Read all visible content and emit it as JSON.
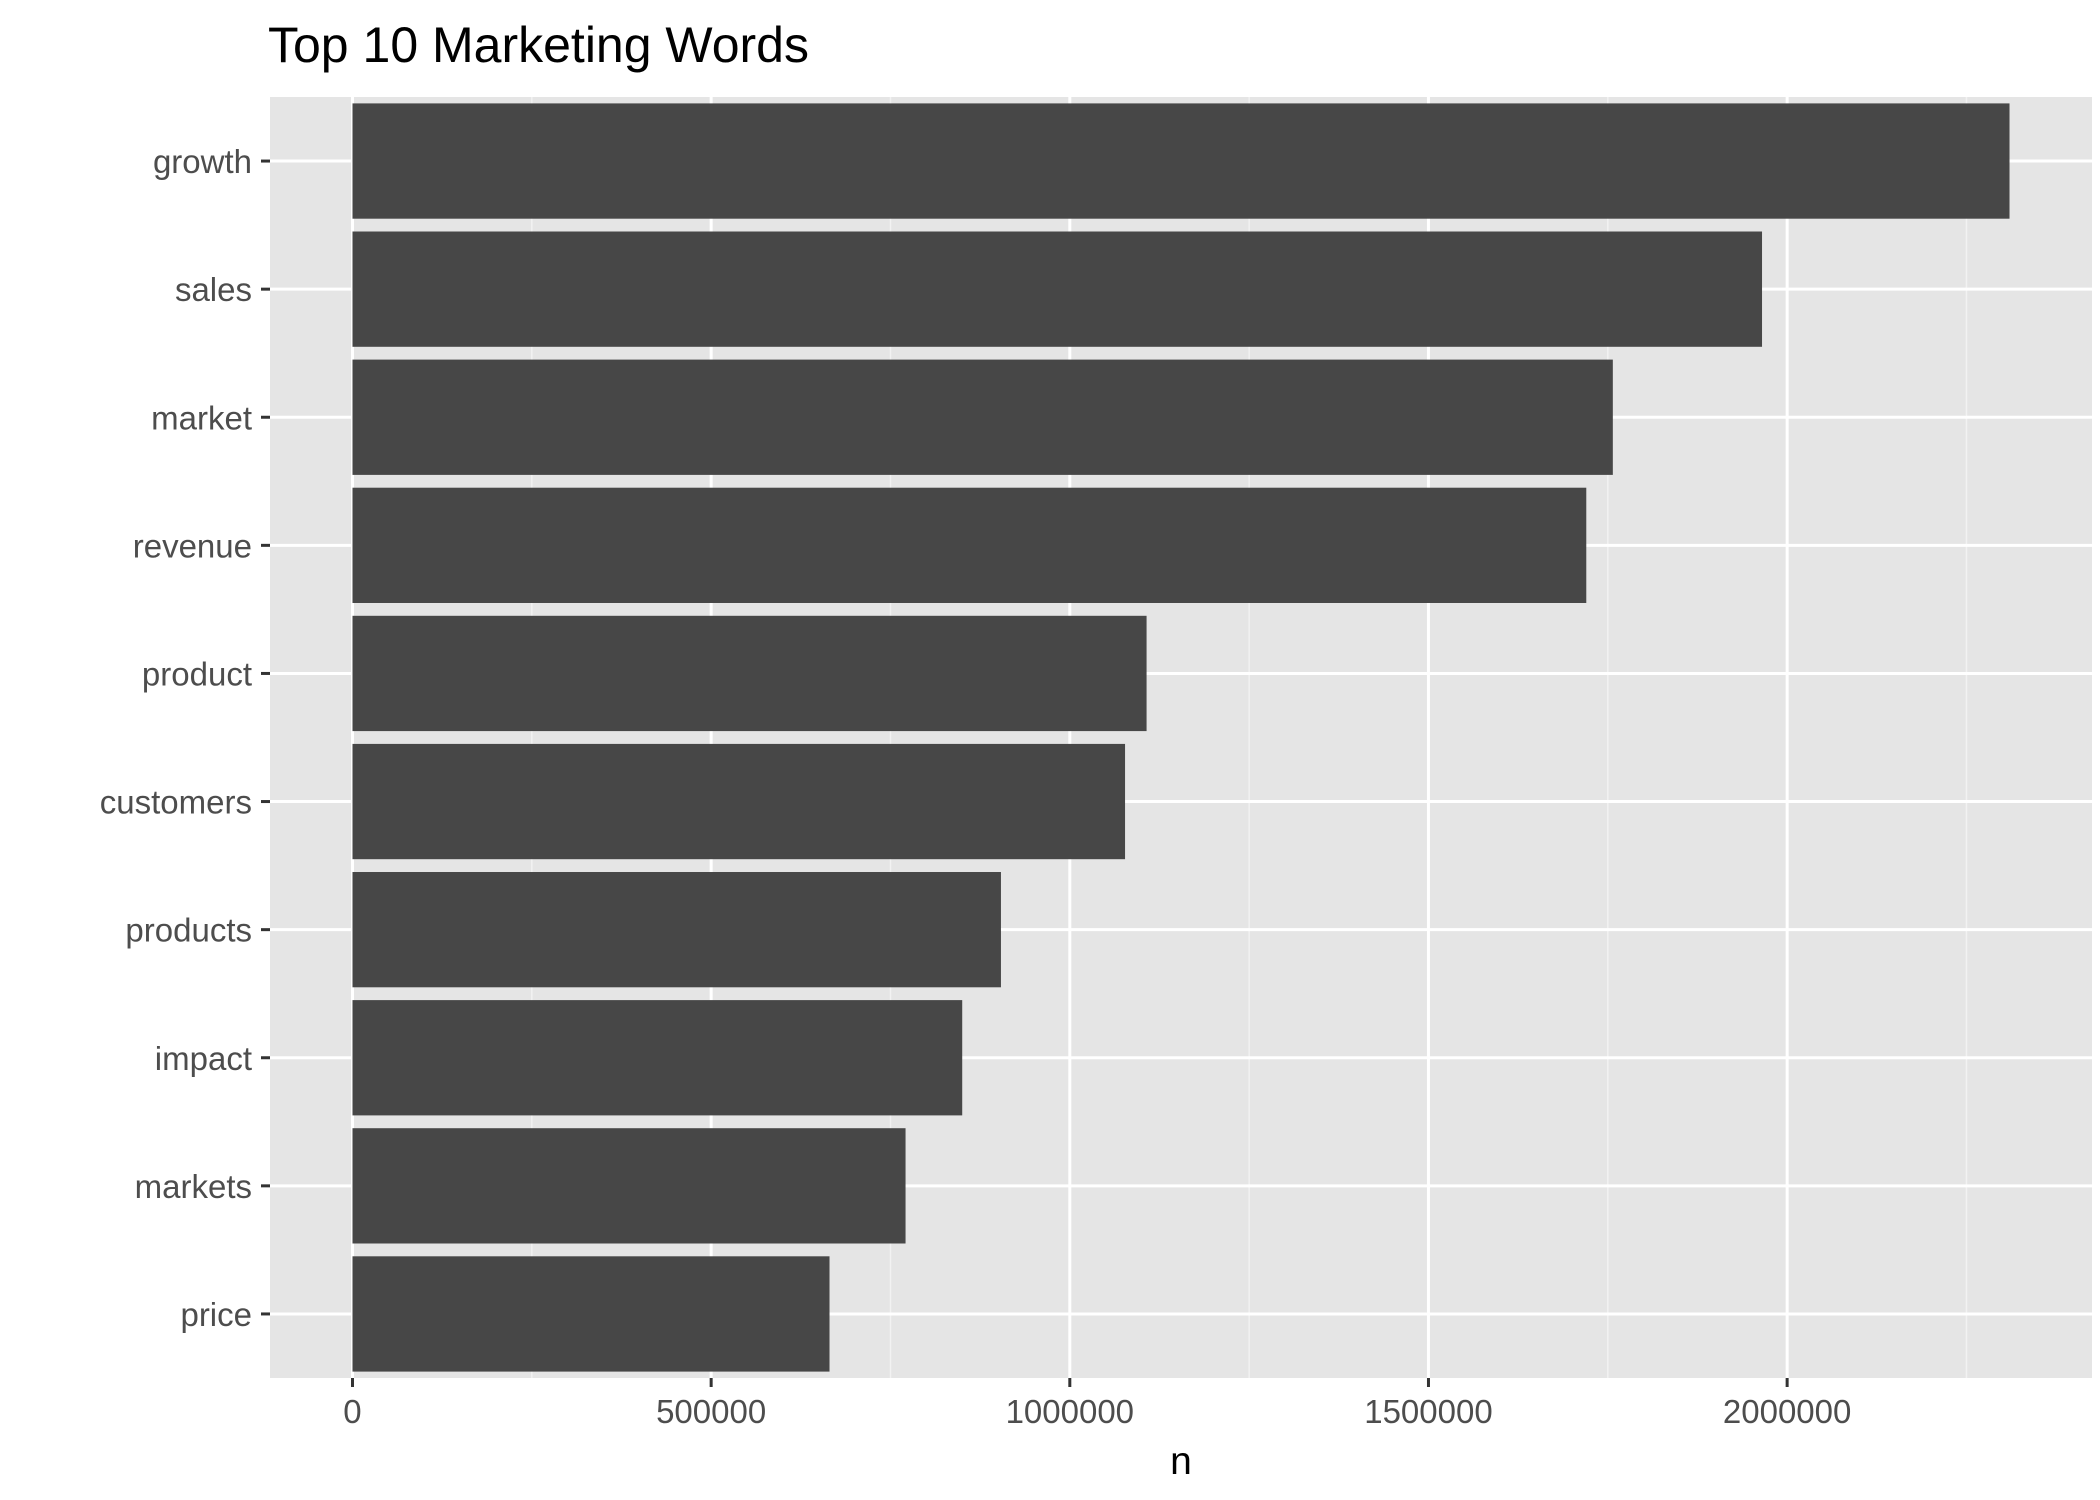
{
  "chart_data": {
    "type": "bar",
    "orientation": "horizontal",
    "title": "Top 10 Marketing Words",
    "xlabel": "n",
    "ylabel": "",
    "categories": [
      "growth",
      "sales",
      "market",
      "revenue",
      "product",
      "customers",
      "products",
      "impact",
      "markets",
      "price"
    ],
    "values": [
      2310000,
      1965000,
      1757000,
      1720000,
      1107000,
      1077000,
      904000,
      850000,
      771000,
      665000
    ],
    "xlim": [
      -115000,
      2425000
    ],
    "xticks": [
      0,
      500000,
      1000000,
      1500000,
      2000000
    ],
    "xtick_labels": [
      "0",
      "500000",
      "1000000",
      "1500000",
      "2000000"
    ],
    "grid": true,
    "legend": "none",
    "colors": {
      "bar": "#474747",
      "panel": "#e5e5e5",
      "grid_major": "#ffffff",
      "grid_minor": "#f2f2f2",
      "tick_label": "#4d4d4d",
      "tick_mark": "#333333"
    }
  }
}
